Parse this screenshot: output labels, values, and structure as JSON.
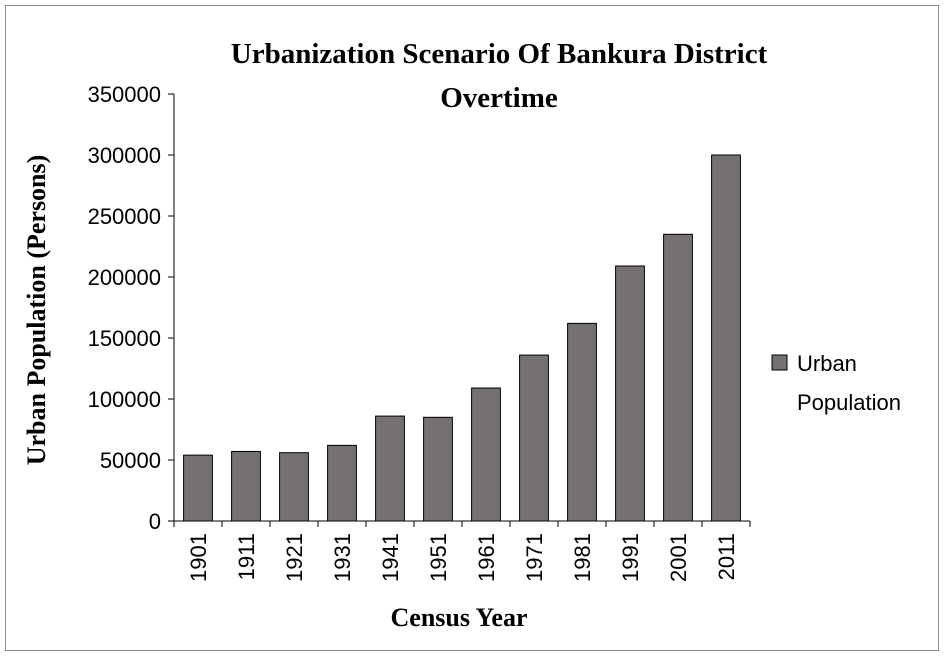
{
  "chart_data": {
    "type": "bar",
    "title_line1": "Urbanization Scenario Of Bankura District",
    "title_line2": "Overtime",
    "xlabel": "Census  Year",
    "ylabel": "Urban Population (Persons)",
    "categories": [
      "1901",
      "1911",
      "1921",
      "1931",
      "1941",
      "1951",
      "1961",
      "1971",
      "1981",
      "1991",
      "2001",
      "2011"
    ],
    "series": [
      {
        "name": "Urban Population",
        "values": [
          54000,
          57000,
          56000,
          62000,
          86000,
          85000,
          109000,
          136000,
          162000,
          209000,
          235000,
          300000
        ],
        "color": "#757171"
      }
    ],
    "ylim": [
      0,
      350000
    ],
    "yticks": [
      "0",
      "50000",
      "100000",
      "150000",
      "200000",
      "250000",
      "300000",
      "350000"
    ],
    "legend": {
      "line1": "Urban",
      "line2": "Population",
      "position": "right"
    },
    "grid": false
  }
}
